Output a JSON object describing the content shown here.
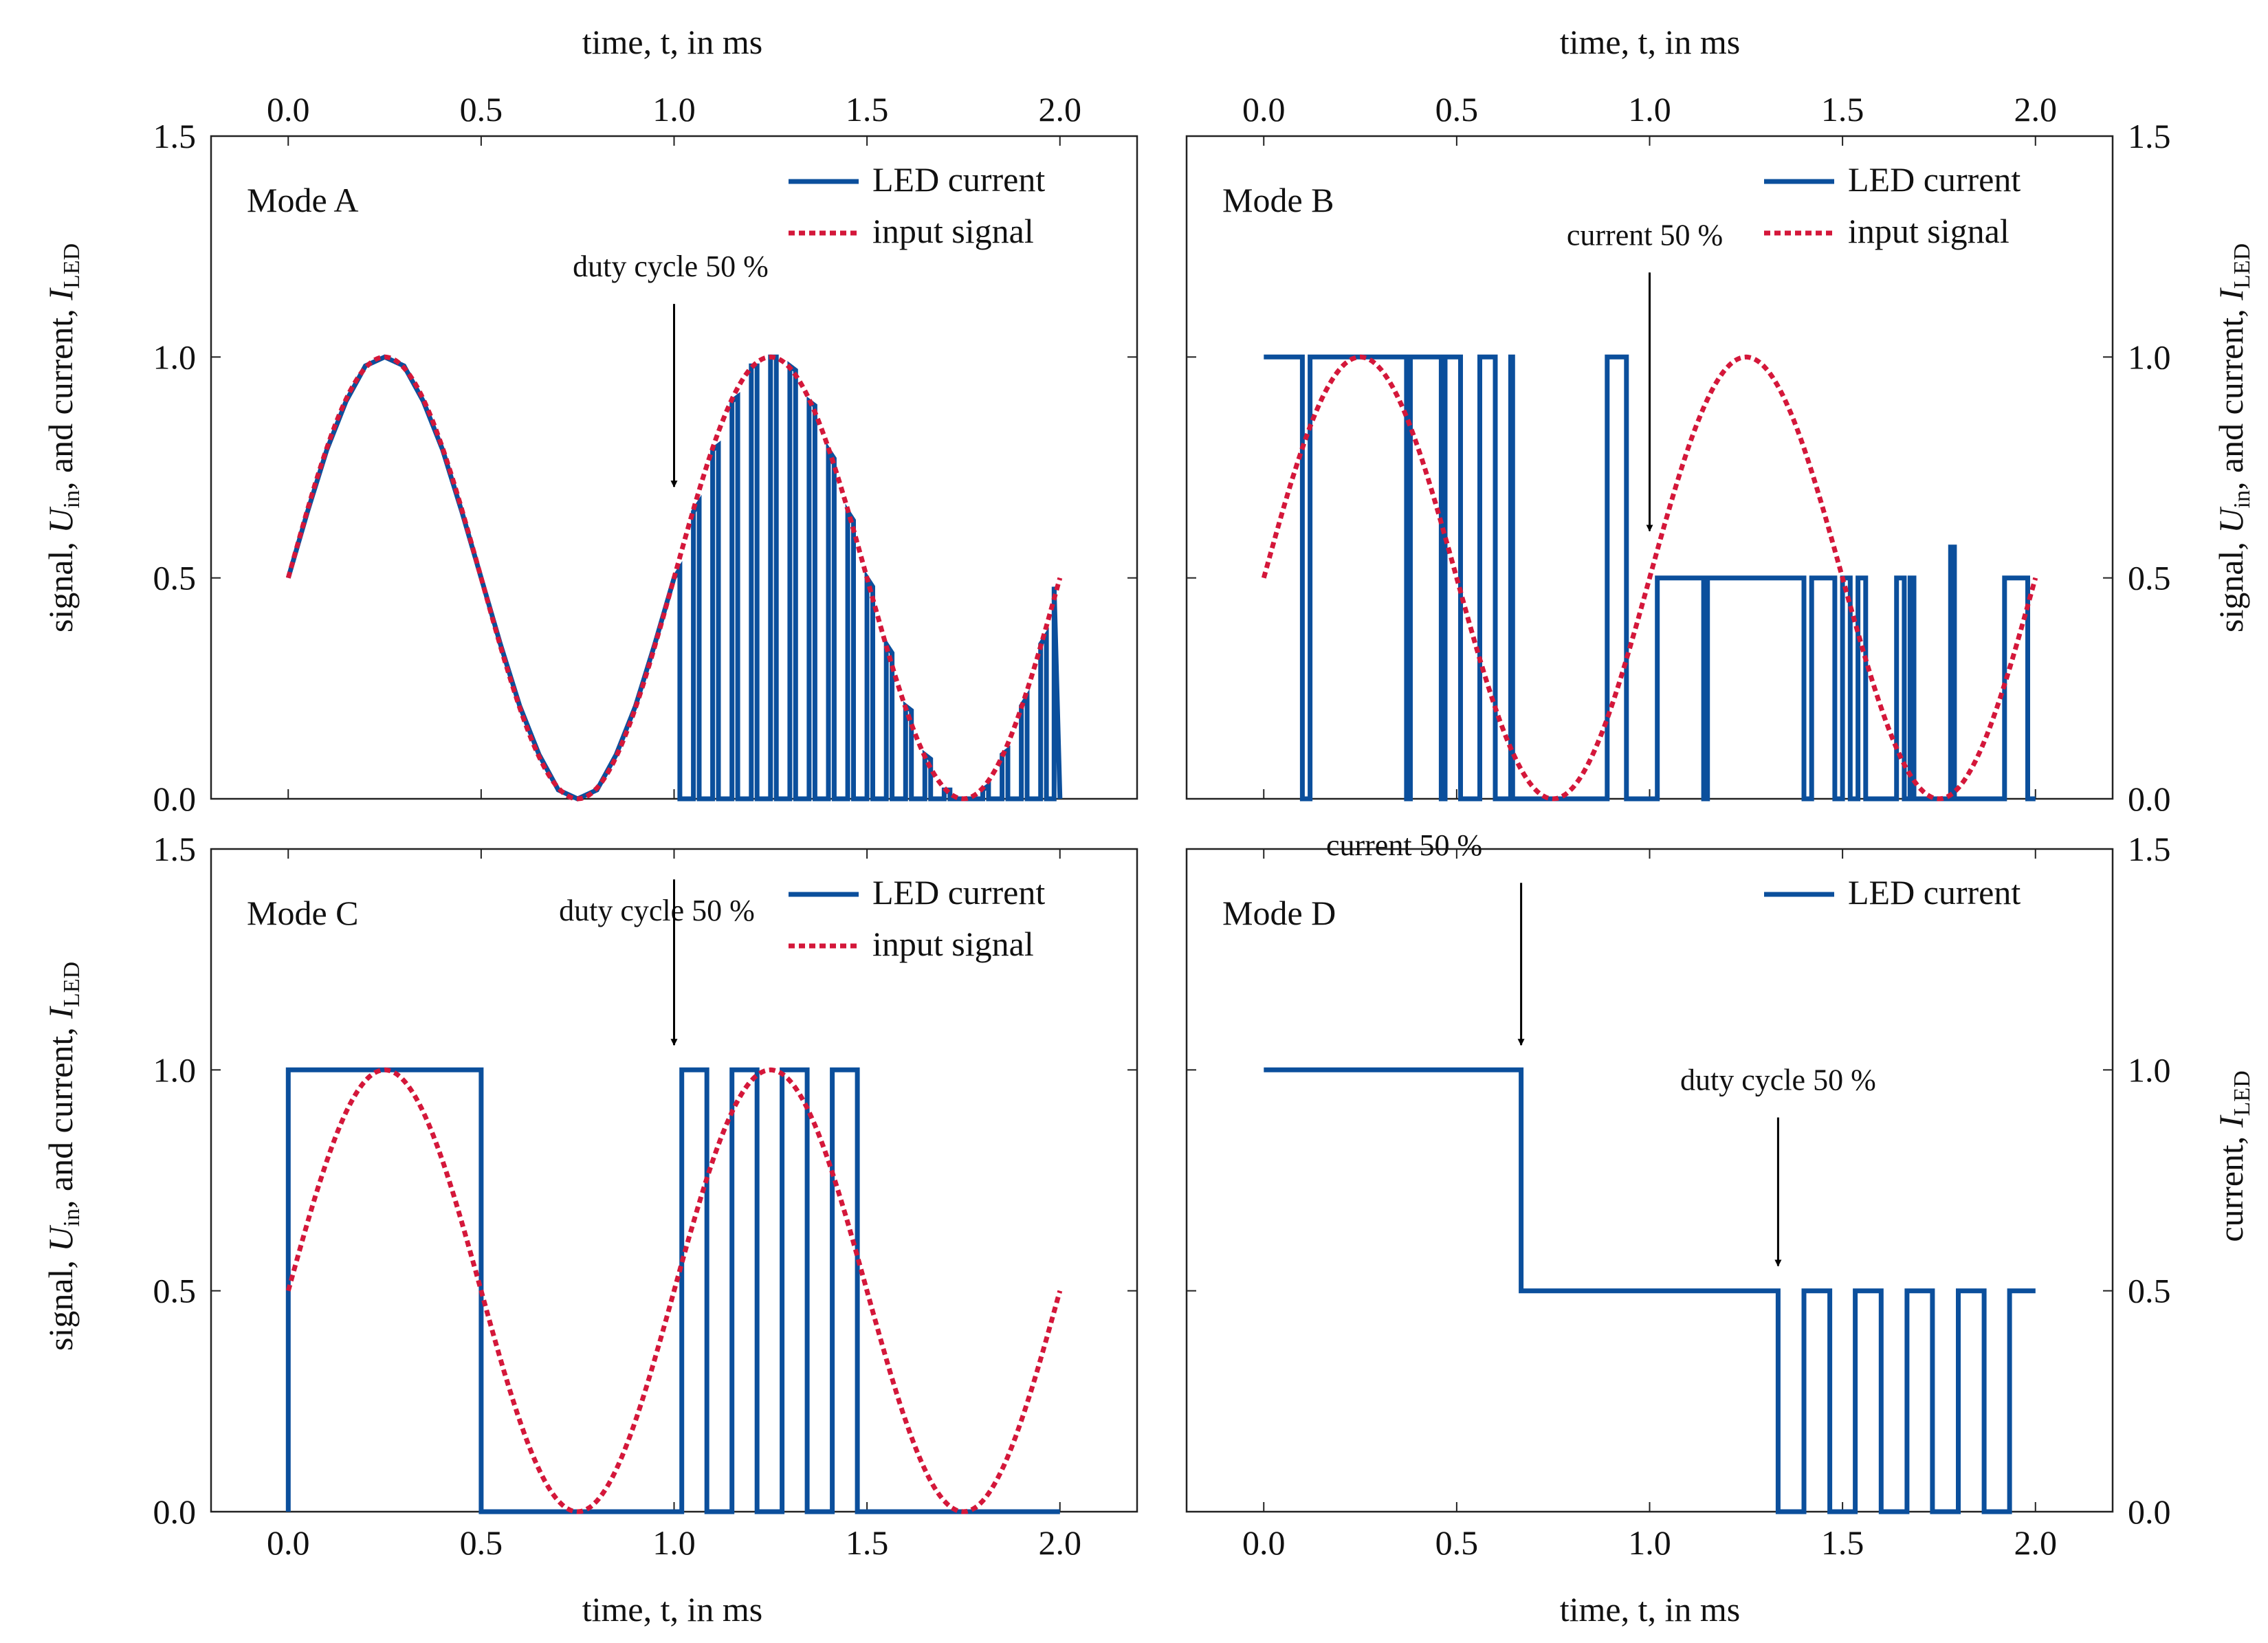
{
  "colors": {
    "led": "#0b4f9c",
    "input": "#d4173a",
    "frame": "#222222",
    "grid": "#bbbbbb",
    "annot": "#000000"
  },
  "axes_common": {
    "xlabel_top": "time, t, in ms",
    "xlabel_bottom": "time, t, in ms",
    "xlim": [
      -0.2,
      2.2
    ],
    "ylim": [
      0,
      1.5
    ],
    "x_ticks": [
      "0.0",
      "0.5",
      "1.0",
      "1.5",
      "2.0"
    ],
    "y_ticks": [
      "0.0",
      "0.5",
      "1.0",
      "1.5"
    ],
    "ylabel_signal": "signal, U_in, and current, I_LED",
    "ylabel_current": "current, I_LED"
  },
  "legend": {
    "led": "LED current",
    "input": "input signal"
  },
  "chart_data": [
    {
      "type": "line",
      "title": "Mode A",
      "xlabel": "time, t, in ms",
      "ylabel": "signal, U_in, and current, I_LED",
      "xlim": [
        -0.2,
        2.2
      ],
      "ylim": [
        0,
        1.5
      ],
      "series": [
        {
          "name": "LED current",
          "x": [
            0.0,
            0.05,
            0.1,
            0.15,
            0.2,
            0.25,
            0.3,
            0.35,
            0.4,
            0.45,
            0.5,
            0.55,
            0.6,
            0.65,
            0.7,
            0.75,
            0.8,
            0.85,
            0.9,
            0.95,
            1.0,
            1.0,
            1.0,
            1.015,
            1.015,
            1.05,
            1.05,
            1.065,
            1.065,
            1.1,
            1.1,
            1.115,
            1.115,
            1.15,
            1.15,
            1.165,
            1.165,
            1.2,
            1.2,
            1.215,
            1.215,
            1.25,
            1.25,
            1.265,
            1.265,
            1.3,
            1.3,
            1.315,
            1.315,
            1.35,
            1.35,
            1.365,
            1.365,
            1.4,
            1.4,
            1.415,
            1.415,
            1.45,
            1.45,
            1.465,
            1.465,
            1.5,
            1.5,
            1.515,
            1.515,
            1.55,
            1.55,
            1.565,
            1.565,
            1.6,
            1.6,
            1.615,
            1.615,
            1.65,
            1.65,
            1.665,
            1.665,
            1.7,
            1.7,
            1.715,
            1.715,
            1.75,
            1.75,
            1.765,
            1.765,
            1.8,
            1.8,
            1.815,
            1.815,
            1.85,
            1.85,
            1.865,
            1.865,
            1.9,
            1.9,
            1.915,
            1.915,
            1.95,
            1.95,
            1.965,
            1.965,
            1.985,
            1.985,
            2.0
          ],
          "y": [
            0.5,
            0.65,
            0.79,
            0.9,
            0.98,
            1.0,
            0.98,
            0.9,
            0.79,
            0.65,
            0.5,
            0.35,
            0.21,
            0.1,
            0.02,
            0.0,
            0.02,
            0.1,
            0.21,
            0.35,
            0.5,
            0.5,
            0.5,
            0.52,
            0.0,
            0.0,
            0.65,
            0.67,
            0.0,
            0.0,
            0.79,
            0.8,
            0.0,
            0.0,
            0.9,
            0.91,
            0.0,
            0.0,
            0.98,
            0.98,
            0.0,
            0.0,
            1.0,
            1.0,
            0.0,
            0.0,
            0.98,
            0.97,
            0.0,
            0.0,
            0.9,
            0.89,
            0.0,
            0.0,
            0.79,
            0.77,
            0.0,
            0.0,
            0.65,
            0.63,
            0.0,
            0.0,
            0.5,
            0.48,
            0.0,
            0.0,
            0.35,
            0.33,
            0.0,
            0.0,
            0.21,
            0.2,
            0.0,
            0.0,
            0.1,
            0.09,
            0.0,
            0.0,
            0.02,
            0.02,
            0.0,
            0.0,
            0.0,
            0.0,
            0.0,
            0.0,
            0.02,
            0.03,
            0.0,
            0.0,
            0.1,
            0.11,
            0.0,
            0.0,
            0.21,
            0.23,
            0.0,
            0.0,
            0.35,
            0.37,
            0.0,
            0.0,
            0.48,
            0.0
          ]
        },
        {
          "name": "input signal",
          "function": "0.5 + 0.5*sin(2*pi*t)",
          "x_range": [
            0,
            2
          ]
        }
      ],
      "annotation": {
        "text": "duty cycle 50 %",
        "x": 1.0,
        "y": 0.7
      }
    },
    {
      "type": "line",
      "title": "Mode B",
      "xlabel": "time, t, in ms",
      "ylabel": "signal, U_in, and current, I_LED",
      "xlim": [
        -0.2,
        2.2
      ],
      "ylim": [
        0,
        1.5
      ],
      "series": [
        {
          "name": "LED current",
          "x": [
            0.0,
            0.1,
            0.1,
            0.12,
            0.12,
            0.13,
            0.13,
            0.37,
            0.37,
            0.38,
            0.38,
            0.39,
            0.39,
            0.46,
            0.46,
            0.47,
            0.47,
            0.51,
            0.51,
            0.56,
            0.56,
            0.6,
            0.6,
            0.64,
            0.64,
            0.645,
            0.645,
            0.655,
            0.655,
            0.89,
            0.89,
            0.94,
            0.94,
            1.02,
            1.02,
            1.03,
            1.03,
            1.14,
            1.14,
            1.15,
            1.15,
            1.16,
            1.16,
            1.4,
            1.4,
            1.42,
            1.42,
            1.48,
            1.48,
            1.5,
            1.5,
            1.52,
            1.52,
            1.54,
            1.54,
            1.56,
            1.56,
            1.64,
            1.64,
            1.66,
            1.66,
            1.675,
            1.675,
            1.685,
            1.685,
            1.78,
            1.78,
            1.79,
            1.79,
            1.8,
            1.8,
            1.92,
            1.92,
            1.98,
            1.98,
            2.0
          ],
          "y": [
            1.0,
            1.0,
            0.0,
            0.0,
            1.0,
            1.0,
            1.0,
            1.0,
            0.0,
            0.0,
            1.0,
            1.0,
            1.0,
            1.0,
            0.0,
            0.0,
            1.0,
            1.0,
            0.0,
            0.0,
            1.0,
            1.0,
            0.0,
            0.0,
            1.0,
            1.0,
            0.0,
            0.0,
            0.0,
            0.0,
            1.0,
            1.0,
            0.0,
            0.0,
            0.5,
            0.5,
            0.5,
            0.5,
            0.0,
            0.0,
            0.5,
            0.5,
            0.5,
            0.5,
            0.0,
            0.0,
            0.5,
            0.5,
            0.0,
            0.0,
            0.5,
            0.5,
            0.0,
            0.0,
            0.5,
            0.5,
            0.0,
            0.0,
            0.5,
            0.5,
            0.0,
            0.0,
            0.5,
            0.5,
            0.0,
            0.0,
            0.57,
            0.57,
            0.0,
            0.0,
            0.0,
            0.0,
            0.5,
            0.5,
            0.0,
            0.0
          ]
        },
        {
          "name": "input signal",
          "function": "0.5 + 0.5*sin(2*pi*t)",
          "x_range": [
            0,
            2
          ]
        }
      ],
      "annotation": {
        "text": "current 50 %",
        "x": 1.0,
        "y": 0.6
      }
    },
    {
      "type": "line",
      "title": "Mode C",
      "xlabel": "time, t, in ms",
      "ylabel": "signal, U_in, and current, I_LED",
      "xlim": [
        -0.2,
        2.2
      ],
      "ylim": [
        0,
        1.5
      ],
      "series": [
        {
          "name": "LED current",
          "x": [
            0.0,
            0.0,
            0.5,
            0.5,
            1.02,
            1.02,
            1.085,
            1.085,
            1.15,
            1.15,
            1.215,
            1.215,
            1.28,
            1.28,
            1.345,
            1.345,
            1.41,
            1.41,
            1.475,
            1.475,
            2.0
          ],
          "y": [
            0.0,
            1.0,
            1.0,
            0.0,
            0.0,
            1.0,
            1.0,
            0.0,
            0.0,
            1.0,
            1.0,
            0.0,
            0.0,
            1.0,
            1.0,
            0.0,
            0.0,
            1.0,
            1.0,
            0.0,
            0.0
          ]
        },
        {
          "name": "input signal",
          "function": "0.5 + 0.5*sin(2*pi*t)",
          "x_range": [
            0,
            2
          ]
        }
      ],
      "annotation": {
        "text": "duty cycle 50 %",
        "x": 1.0,
        "y": 1.05
      }
    },
    {
      "type": "line",
      "title": "Mode D",
      "xlabel": "time, t, in ms",
      "ylabel": "current, I_LED",
      "xlim": [
        -0.2,
        2.2
      ],
      "ylim": [
        0,
        1.5
      ],
      "series": [
        {
          "name": "LED current",
          "x": [
            0.0,
            0.667,
            0.667,
            1.333,
            1.333,
            1.4,
            1.4,
            1.467,
            1.467,
            1.533,
            1.533,
            1.6,
            1.6,
            1.667,
            1.667,
            1.733,
            1.733,
            1.8,
            1.8,
            1.867,
            1.867,
            1.933,
            1.933,
            2.0
          ],
          "y": [
            1.0,
            1.0,
            0.5,
            0.5,
            0.0,
            0.0,
            0.5,
            0.5,
            0.0,
            0.0,
            0.5,
            0.5,
            0.0,
            0.0,
            0.5,
            0.5,
            0.0,
            0.0,
            0.5,
            0.5,
            0.0,
            0.0,
            0.5,
            0.5
          ]
        }
      ],
      "annotations": [
        {
          "text": "current 50 %",
          "x": 0.667,
          "y": 1.05
        },
        {
          "text": "duty cycle 50 %",
          "x": 1.333,
          "y": 0.55
        }
      ]
    }
  ]
}
